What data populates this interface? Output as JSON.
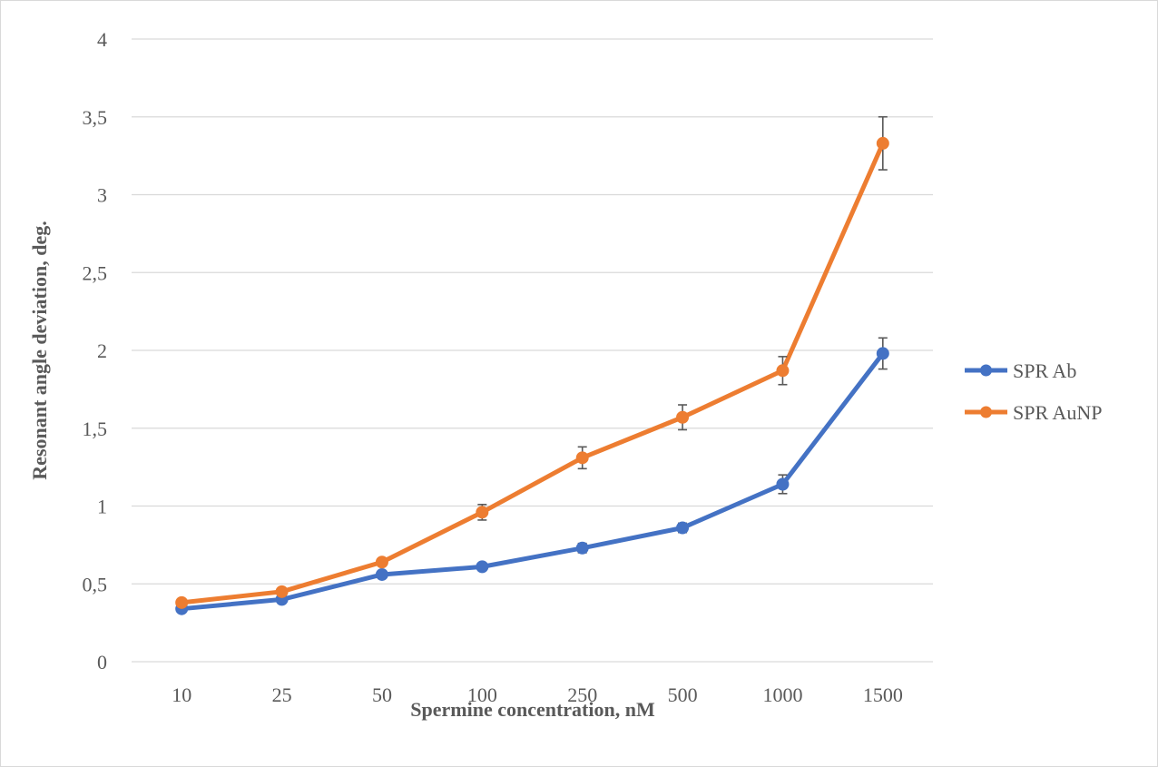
{
  "chart_data": {
    "type": "line",
    "title": "",
    "xlabel": "Spermine concentration, nM",
    "ylabel": "Resonant angle deviation, deg.",
    "categories": [
      "10",
      "25",
      "50",
      "100",
      "250",
      "500",
      "1000",
      "1500"
    ],
    "ylim": [
      0,
      4
    ],
    "yticks": [
      0,
      0.5,
      1,
      1.5,
      2,
      2.5,
      3,
      3.5,
      4
    ],
    "ytick_labels": [
      "0",
      "0,5",
      "1",
      "1,5",
      "2",
      "2,5",
      "3",
      "3,5",
      "4"
    ],
    "grid": "horizontal",
    "legend_position": "right",
    "series": [
      {
        "name": "SPR Ab",
        "color": "#4472C4",
        "values": [
          0.34,
          0.4,
          0.56,
          0.61,
          0.73,
          0.86,
          1.14,
          1.98
        ],
        "error": [
          0.01,
          0.01,
          0.01,
          0.01,
          0.03,
          0.03,
          0.06,
          0.1
        ]
      },
      {
        "name": "SPR AuNP",
        "color": "#ED7D31",
        "values": [
          0.38,
          0.45,
          0.64,
          0.96,
          1.31,
          1.57,
          1.87,
          3.33
        ],
        "error": [
          0.01,
          0.01,
          0.01,
          0.05,
          0.07,
          0.08,
          0.09,
          0.17
        ]
      }
    ]
  }
}
